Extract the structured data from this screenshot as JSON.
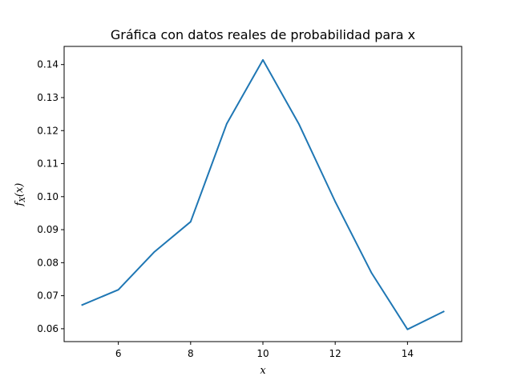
{
  "chart_data": {
    "type": "line",
    "title": "Gráfica con datos reales de probabilidad para x",
    "xlabel": "x",
    "ylabel": "f_X(x)",
    "ylabel_parts": {
      "main": "f",
      "sub": "X",
      "rest": "(x)"
    },
    "x": [
      5,
      6,
      7,
      8,
      9,
      10,
      11,
      12,
      13,
      14,
      15
    ],
    "series": [
      {
        "values": [
          0.0672,
          0.0718,
          0.0833,
          0.0924,
          0.1221,
          0.1414,
          0.1219,
          0.0985,
          0.077,
          0.0598,
          0.0652
        ],
        "color": "#1f77b4"
      }
    ],
    "xlim": [
      4.5,
      15.5
    ],
    "ylim": [
      0.0561,
      0.1455
    ],
    "xticks": [
      "6",
      "8",
      "10",
      "12",
      "14"
    ],
    "yticks": [
      "0.06",
      "0.07",
      "0.08",
      "0.09",
      "0.10",
      "0.11",
      "0.12",
      "0.13",
      "0.14"
    ],
    "grid": false
  }
}
